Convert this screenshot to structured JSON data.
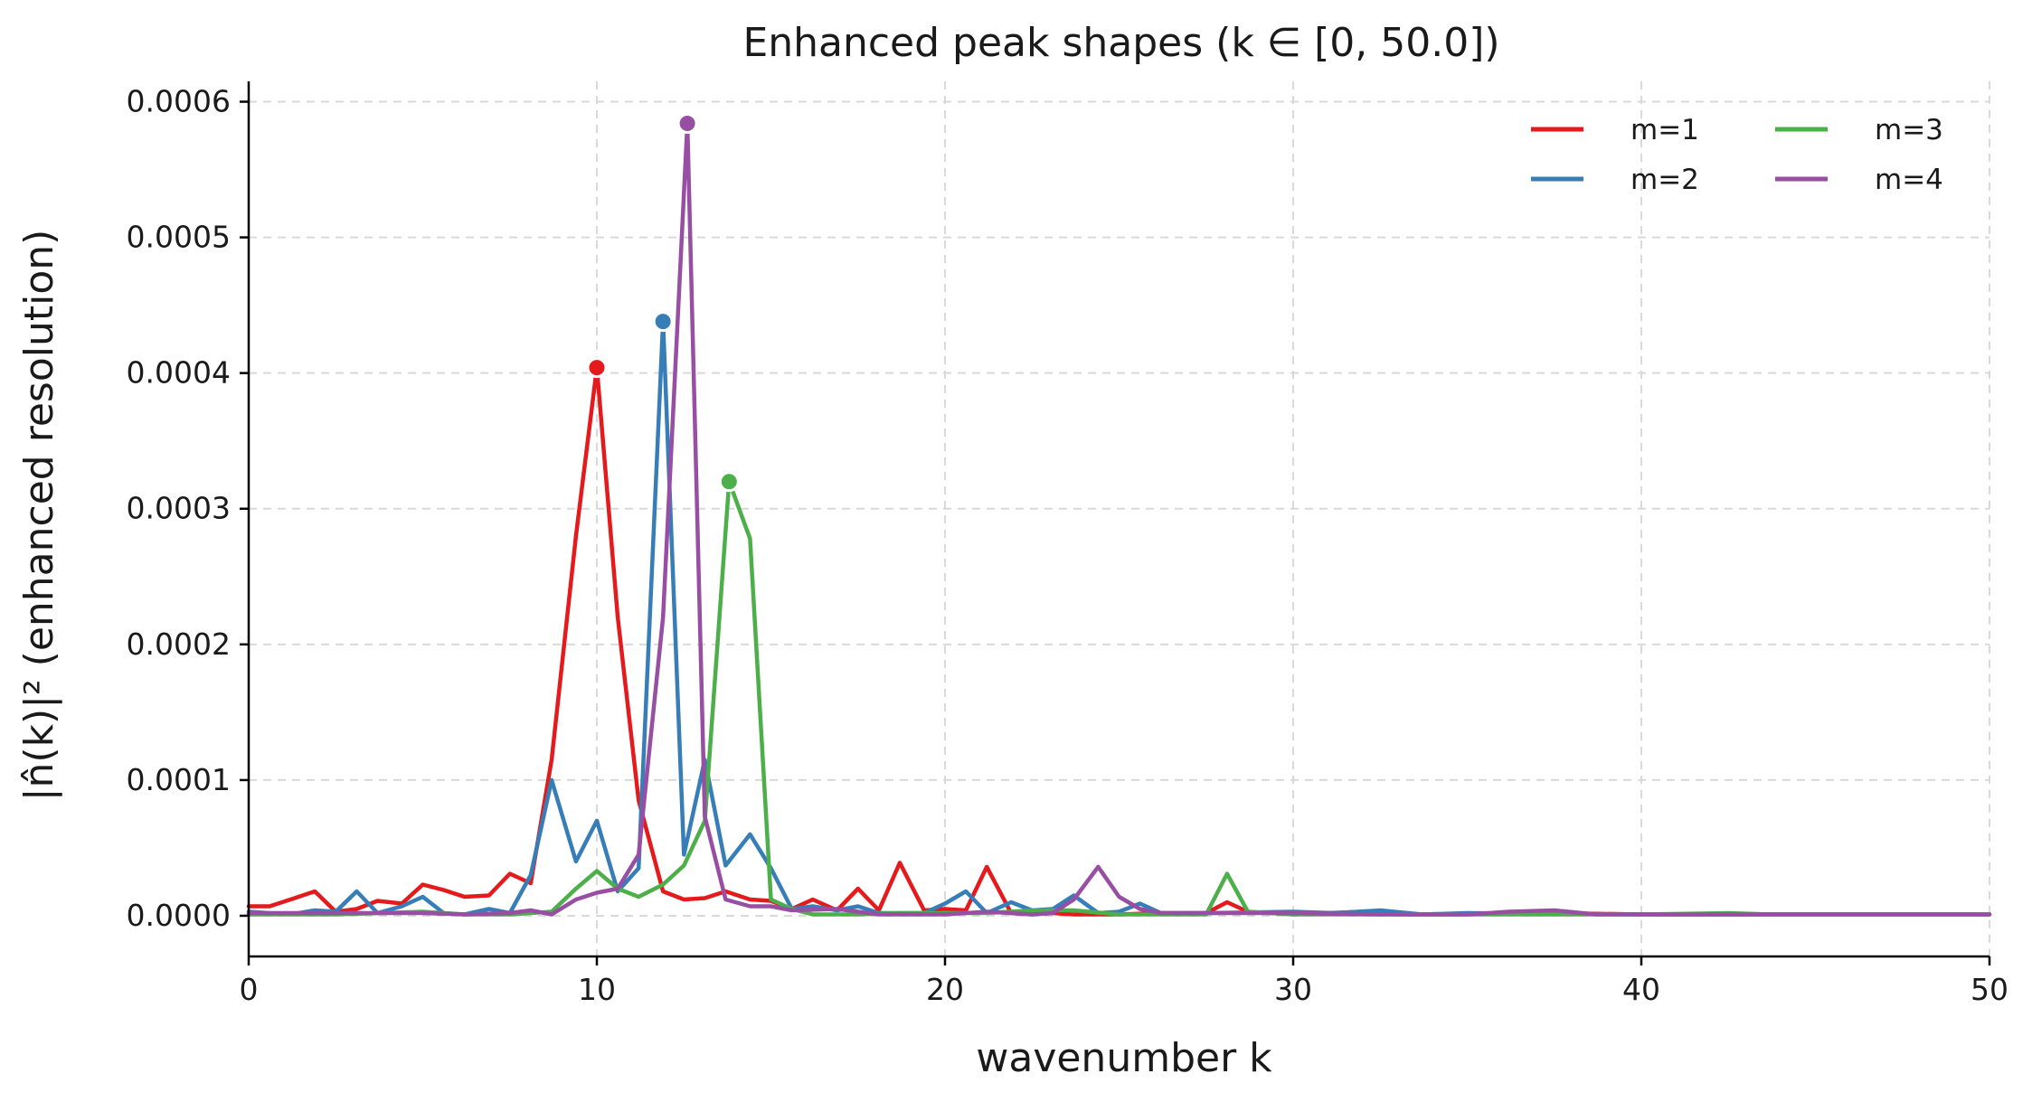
{
  "chart_data": {
    "type": "line",
    "title": "Enhanced peak shapes (k ∈ [0, 50.0])",
    "xlabel": "wavenumber k",
    "ylabel": "|n̂(k)|² (enhanced resolution)",
    "xlim": [
      0,
      50
    ],
    "ylim": [
      -3e-05,
      0.000615
    ],
    "xticks": [
      0,
      10,
      20,
      30,
      40,
      50
    ],
    "xtick_labels": [
      "0",
      "10",
      "20",
      "30",
      "40",
      "50"
    ],
    "yticks": [
      0,
      0.0001,
      0.0002,
      0.0003,
      0.0004,
      0.0005,
      0.0006
    ],
    "ytick_labels": [
      "0.0000",
      "0.0001",
      "0.0002",
      "0.0003",
      "0.0004",
      "0.0005",
      "0.0006"
    ],
    "grid": true,
    "legend_position": "top-right",
    "legend_columns": 2,
    "series": [
      {
        "name": "m=1",
        "color": "#e41a1c",
        "peak": [
          10.0,
          0.000404
        ],
        "points": [
          [
            0,
            7e-06
          ],
          [
            0.6,
            7e-06
          ],
          [
            1.2,
            1.2e-05
          ],
          [
            1.9,
            1.8e-05
          ],
          [
            2.5,
            3e-06
          ],
          [
            3.1,
            5e-06
          ],
          [
            3.7,
            1.1e-05
          ],
          [
            4.4,
            9e-06
          ],
          [
            5.0,
            2.3e-05
          ],
          [
            5.6,
            1.9e-05
          ],
          [
            6.2,
            1.4e-05
          ],
          [
            6.9,
            1.5e-05
          ],
          [
            7.5,
            3.1e-05
          ],
          [
            8.1,
            2.4e-05
          ],
          [
            8.7,
            0.000115
          ],
          [
            9.4,
            0.00028
          ],
          [
            10.0,
            0.000404
          ],
          [
            10.6,
            0.00022
          ],
          [
            11.2,
            8.5e-05
          ],
          [
            11.9,
            1.8e-05
          ],
          [
            12.5,
            1.2e-05
          ],
          [
            13.1,
            1.3e-05
          ],
          [
            13.7,
            1.8e-05
          ],
          [
            14.4,
            1.2e-05
          ],
          [
            15.0,
            1.1e-05
          ],
          [
            15.6,
            5e-06
          ],
          [
            16.2,
            1.2e-05
          ],
          [
            16.9,
            4e-06
          ],
          [
            17.5,
            2e-05
          ],
          [
            18.1,
            4e-06
          ],
          [
            18.7,
            3.9e-05
          ],
          [
            19.4,
            4e-06
          ],
          [
            20.0,
            5e-06
          ],
          [
            20.6,
            4e-06
          ],
          [
            21.2,
            3.6e-05
          ],
          [
            21.9,
            2e-06
          ],
          [
            22.5,
            1e-06
          ],
          [
            23.1,
            2e-06
          ],
          [
            23.7,
            1e-06
          ],
          [
            25.0,
            1e-06
          ],
          [
            26.2,
            2e-06
          ],
          [
            27.5,
            2e-06
          ],
          [
            28.1,
            1e-05
          ],
          [
            28.7,
            3e-06
          ],
          [
            30.0,
            1e-06
          ],
          [
            32.0,
            3e-06
          ],
          [
            33.0,
            1e-06
          ],
          [
            35.0,
            1e-06
          ],
          [
            37.5,
            2e-06
          ],
          [
            40.0,
            1e-06
          ],
          [
            45.0,
            1e-06
          ],
          [
            50.0,
            1e-06
          ]
        ]
      },
      {
        "name": "m=2",
        "color": "#377eb8",
        "peak": [
          11.9,
          0.000438
        ],
        "points": [
          [
            0,
            3e-06
          ],
          [
            1.2,
            1e-06
          ],
          [
            1.9,
            4e-06
          ],
          [
            2.5,
            3e-06
          ],
          [
            3.1,
            1.8e-05
          ],
          [
            3.7,
            2e-06
          ],
          [
            4.4,
            7e-06
          ],
          [
            5.0,
            1.4e-05
          ],
          [
            5.6,
            2e-06
          ],
          [
            6.2,
            1e-06
          ],
          [
            6.9,
            5e-06
          ],
          [
            7.5,
            2e-06
          ],
          [
            8.1,
            3e-05
          ],
          [
            8.7,
            0.0001
          ],
          [
            9.4,
            4e-05
          ],
          [
            10.0,
            7e-05
          ],
          [
            10.6,
            1.8e-05
          ],
          [
            11.2,
            3.5e-05
          ],
          [
            11.9,
            0.000438
          ],
          [
            12.5,
            4.5e-05
          ],
          [
            13.1,
            0.000115
          ],
          [
            13.7,
            3.7e-05
          ],
          [
            14.4,
            6e-05
          ],
          [
            15.0,
            3.5e-05
          ],
          [
            15.6,
            5e-06
          ],
          [
            16.2,
            7e-06
          ],
          [
            16.9,
            4e-06
          ],
          [
            17.5,
            7e-06
          ],
          [
            18.1,
            2e-06
          ],
          [
            18.7,
            2e-06
          ],
          [
            19.4,
            2e-06
          ],
          [
            20.0,
            9e-06
          ],
          [
            20.6,
            1.8e-05
          ],
          [
            21.2,
            2e-06
          ],
          [
            21.9,
            1e-05
          ],
          [
            22.5,
            4e-06
          ],
          [
            23.1,
            5e-06
          ],
          [
            23.7,
            1.5e-05
          ],
          [
            24.4,
            2e-06
          ],
          [
            25.0,
            3e-06
          ],
          [
            25.6,
            9e-06
          ],
          [
            26.2,
            2e-06
          ],
          [
            27.5,
            2e-06
          ],
          [
            30.0,
            3e-06
          ],
          [
            31.2,
            2e-06
          ],
          [
            32.5,
            4e-06
          ],
          [
            33.7,
            1e-06
          ],
          [
            35.0,
            2e-06
          ],
          [
            40.0,
            1e-06
          ],
          [
            45.0,
            1e-06
          ],
          [
            50.0,
            1e-06
          ]
        ]
      },
      {
        "name": "m=3",
        "color": "#4daf4a",
        "peak": [
          13.8,
          0.00032
        ],
        "points": [
          [
            0,
            1e-06
          ],
          [
            2.5,
            1e-06
          ],
          [
            5.0,
            3e-06
          ],
          [
            6.2,
            1e-06
          ],
          [
            7.5,
            1e-06
          ],
          [
            8.7,
            3e-06
          ],
          [
            9.4,
            2e-05
          ],
          [
            10.0,
            3.3e-05
          ],
          [
            10.6,
            2e-05
          ],
          [
            11.2,
            1.4e-05
          ],
          [
            11.9,
            2.3e-05
          ],
          [
            12.5,
            3.7e-05
          ],
          [
            13.1,
            7e-05
          ],
          [
            13.8,
            0.00032
          ],
          [
            14.4,
            0.000278
          ],
          [
            15.0,
            1.2e-05
          ],
          [
            15.6,
            5e-06
          ],
          [
            16.2,
            1e-06
          ],
          [
            16.9,
            1e-06
          ],
          [
            17.5,
            1e-06
          ],
          [
            18.7,
            2e-06
          ],
          [
            20.0,
            2e-06
          ],
          [
            21.2,
            2e-06
          ],
          [
            22.5,
            4e-06
          ],
          [
            23.7,
            4e-06
          ],
          [
            25.0,
            1e-06
          ],
          [
            26.2,
            1e-06
          ],
          [
            27.5,
            1e-06
          ],
          [
            28.1,
            3.1e-05
          ],
          [
            28.7,
            3e-06
          ],
          [
            30.0,
            1e-06
          ],
          [
            35.0,
            1e-06
          ],
          [
            40.0,
            1e-06
          ],
          [
            42.5,
            2e-06
          ],
          [
            43.7,
            1e-06
          ],
          [
            50.0,
            1e-06
          ]
        ]
      },
      {
        "name": "m=4",
        "color": "#984ea3",
        "peak": [
          12.6,
          0.000584
        ],
        "points": [
          [
            0,
            2e-06
          ],
          [
            2.5,
            2e-06
          ],
          [
            5.0,
            2e-06
          ],
          [
            6.2,
            1e-06
          ],
          [
            7.5,
            2e-06
          ],
          [
            8.1,
            4e-06
          ],
          [
            8.7,
            1e-06
          ],
          [
            9.4,
            1.2e-05
          ],
          [
            10.0,
            1.7e-05
          ],
          [
            10.6,
            2e-05
          ],
          [
            11.2,
            4.5e-05
          ],
          [
            11.9,
            0.00022
          ],
          [
            12.6,
            0.000584
          ],
          [
            13.1,
            7.3e-05
          ],
          [
            13.7,
            1.2e-05
          ],
          [
            14.4,
            7e-06
          ],
          [
            15.0,
            7e-06
          ],
          [
            15.6,
            4e-06
          ],
          [
            16.9,
            5e-06
          ],
          [
            18.1,
            1e-06
          ],
          [
            20.0,
            1e-06
          ],
          [
            21.2,
            3e-06
          ],
          [
            22.5,
            1e-06
          ],
          [
            23.1,
            2e-06
          ],
          [
            23.7,
            1.2e-05
          ],
          [
            24.4,
            3.6e-05
          ],
          [
            25.0,
            1.4e-05
          ],
          [
            25.6,
            5e-06
          ],
          [
            26.2,
            2e-06
          ],
          [
            27.5,
            2e-06
          ],
          [
            30.0,
            2e-06
          ],
          [
            32.5,
            1e-06
          ],
          [
            35.0,
            1e-06
          ],
          [
            36.2,
            3e-06
          ],
          [
            37.5,
            4e-06
          ],
          [
            38.7,
            1e-06
          ],
          [
            40.0,
            1e-06
          ],
          [
            45.0,
            1e-06
          ],
          [
            50.0,
            1e-06
          ]
        ]
      }
    ]
  }
}
